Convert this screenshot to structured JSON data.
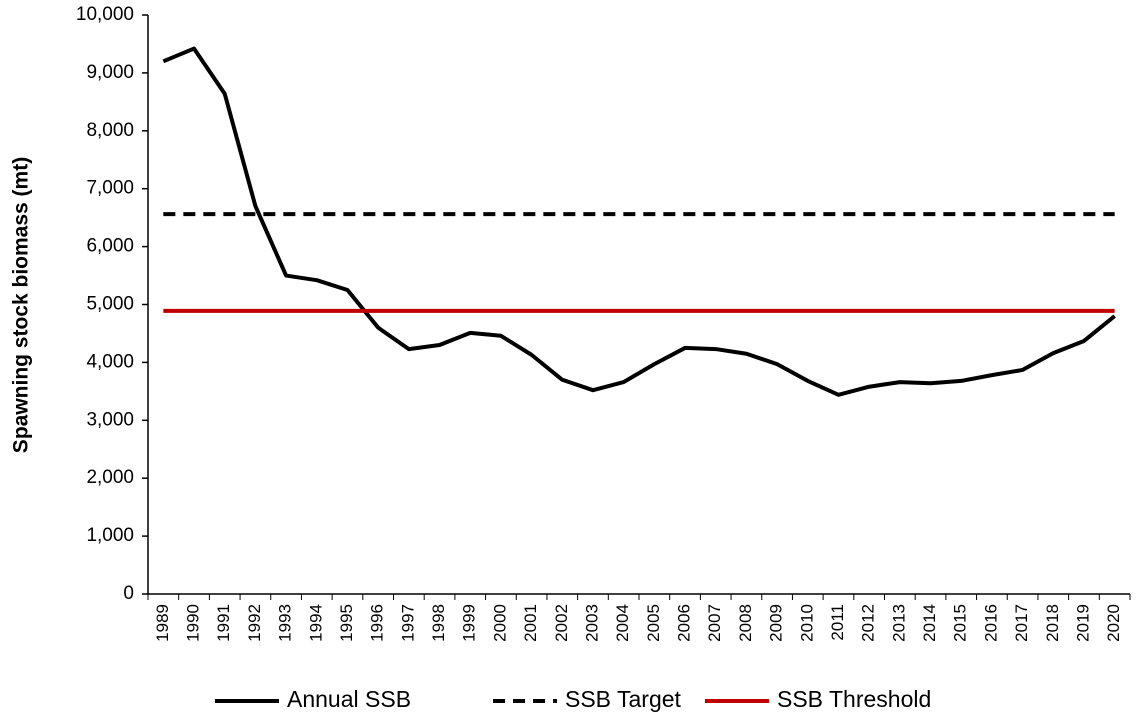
{
  "chart_data": {
    "type": "line",
    "y_label": "Spawning stock biomass (mt)",
    "categories": [
      "1989",
      "1990",
      "1991",
      "1992",
      "1993",
      "1994",
      "1995",
      "1996",
      "1997",
      "1998",
      "1999",
      "2000",
      "2001",
      "2002",
      "2003",
      "2004",
      "2005",
      "2006",
      "2007",
      "2008",
      "2009",
      "2010",
      "2011",
      "2012",
      "2013",
      "2014",
      "2015",
      "2016",
      "2017",
      "2018",
      "2019",
      "2020"
    ],
    "series": [
      {
        "name": "Annual SSB",
        "color": "#000000",
        "style": "solid",
        "values": [
          9200,
          9420,
          8640,
          6700,
          5500,
          5420,
          5250,
          4600,
          4230,
          4300,
          4510,
          4460,
          4130,
          3700,
          3520,
          3660,
          3970,
          4250,
          4230,
          4150,
          3970,
          3680,
          3440,
          3580,
          3660,
          3640,
          3680,
          3780,
          3870,
          4160,
          4370,
          4800
        ]
      },
      {
        "name": "SSB Target",
        "color": "#000000",
        "style": "dashed",
        "values": [
          6560,
          6560,
          6560,
          6560,
          6560,
          6560,
          6560,
          6560,
          6560,
          6560,
          6560,
          6560,
          6560,
          6560,
          6560,
          6560,
          6560,
          6560,
          6560,
          6560,
          6560,
          6560,
          6560,
          6560,
          6560,
          6560,
          6560,
          6560,
          6560,
          6560,
          6560,
          6560
        ]
      },
      {
        "name": "SSB Threshold",
        "color": "#c00000",
        "style": "solid",
        "values": [
          4890,
          4890,
          4890,
          4890,
          4890,
          4890,
          4890,
          4890,
          4890,
          4890,
          4890,
          4890,
          4890,
          4890,
          4890,
          4890,
          4890,
          4890,
          4890,
          4890,
          4890,
          4890,
          4890,
          4890,
          4890,
          4890,
          4890,
          4890,
          4890,
          4890,
          4890,
          4890
        ]
      }
    ],
    "ylim": [
      0,
      10000
    ],
    "yticks": [
      0,
      {
        "value": 1000,
        "label": "1,000"
      },
      {
        "value": 2000,
        "label": "2,000"
      },
      {
        "value": 3000,
        "label": "3,000"
      },
      {
        "value": 4000,
        "label": "4,000"
      },
      {
        "value": 5000,
        "label": "5,000"
      },
      {
        "value": 6000,
        "label": "6,000"
      },
      {
        "value": 7000,
        "label": "7,000"
      },
      {
        "value": 8000,
        "label": "8,000"
      },
      {
        "value": 9000,
        "label": "9,000"
      },
      {
        "value": 10000,
        "label": "10,000"
      }
    ],
    "legend": "bottom"
  }
}
